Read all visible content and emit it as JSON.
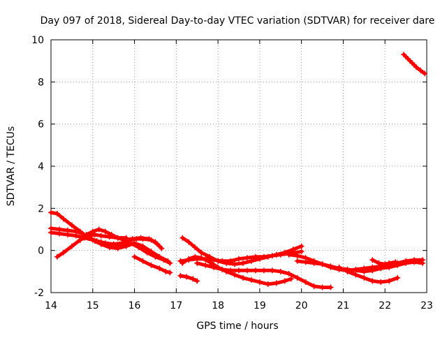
{
  "chart_data": {
    "type": "scatter",
    "title": "Day 097 of 2018, Sidereal Day-to-day VTEC variation (SDTVAR) for receiver dare",
    "xlabel": "GPS time / hours",
    "ylabel": "SDTVAR / TECUs",
    "xlim": [
      14,
      23
    ],
    "ylim": [
      -2,
      10
    ],
    "xticks": [
      14,
      15,
      16,
      17,
      18,
      19,
      20,
      21,
      22,
      23
    ],
    "yticks": [
      -2,
      0,
      2,
      4,
      6,
      8,
      10
    ],
    "xtick_labels": [
      "14",
      "15",
      "16",
      "17",
      "18",
      "19",
      "20",
      "21",
      "22",
      "23"
    ],
    "ytick_labels": [
      "-2",
      "0",
      "2",
      "4",
      "6",
      "8",
      "10"
    ],
    "grid": true,
    "marker": "+",
    "color": "#ff0000",
    "series": [
      {
        "name": "trace-1",
        "points": [
          [
            14.0,
            1.8
          ],
          [
            14.15,
            1.75
          ],
          [
            14.3,
            1.5
          ],
          [
            14.5,
            1.2
          ],
          [
            14.7,
            0.9
          ],
          [
            14.9,
            0.6
          ],
          [
            15.1,
            0.45
          ],
          [
            15.3,
            0.35
          ],
          [
            15.5,
            0.3
          ],
          [
            15.7,
            0.35
          ],
          [
            15.9,
            0.5
          ],
          [
            16.05,
            0.55
          ],
          [
            16.2,
            0.55
          ],
          [
            16.4,
            0.5
          ],
          [
            16.55,
            0.3
          ],
          [
            16.65,
            0.1
          ]
        ]
      },
      {
        "name": "trace-2",
        "points": [
          [
            14.0,
            1.05
          ],
          [
            14.2,
            1.0
          ],
          [
            14.4,
            0.95
          ],
          [
            14.6,
            0.9
          ],
          [
            14.75,
            0.8
          ],
          [
            14.9,
            0.65
          ],
          [
            15.05,
            0.45
          ],
          [
            15.2,
            0.3
          ],
          [
            15.4,
            0.15
          ],
          [
            15.6,
            0.1
          ],
          [
            15.8,
            0.2
          ],
          [
            16.0,
            0.35
          ],
          [
            16.2,
            0.2
          ],
          [
            16.4,
            -0.05
          ],
          [
            16.6,
            -0.3
          ],
          [
            16.8,
            -0.5
          ]
        ]
      },
      {
        "name": "trace-3",
        "points": [
          [
            14.0,
            0.85
          ],
          [
            14.2,
            0.8
          ],
          [
            14.4,
            0.75
          ],
          [
            14.6,
            0.7
          ],
          [
            14.8,
            0.6
          ],
          [
            15.0,
            0.5
          ],
          [
            15.2,
            0.4
          ],
          [
            15.35,
            0.3
          ],
          [
            15.5,
            0.25
          ],
          [
            15.7,
            0.3
          ],
          [
            15.9,
            0.35
          ],
          [
            16.1,
            0.15
          ],
          [
            16.3,
            -0.1
          ],
          [
            16.5,
            -0.3
          ],
          [
            16.7,
            -0.45
          ],
          [
            16.85,
            -0.6
          ]
        ]
      },
      {
        "name": "trace-4",
        "points": [
          [
            14.15,
            -0.3
          ],
          [
            14.3,
            -0.1
          ],
          [
            14.5,
            0.2
          ],
          [
            14.7,
            0.5
          ],
          [
            14.9,
            0.7
          ],
          [
            15.05,
            0.75
          ],
          [
            15.2,
            0.7
          ],
          [
            15.4,
            0.65
          ],
          [
            15.6,
            0.6
          ],
          [
            15.8,
            0.6
          ]
        ]
      },
      {
        "name": "trace-5",
        "points": [
          [
            14.7,
            0.5
          ],
          [
            14.85,
            0.75
          ],
          [
            15.0,
            0.9
          ],
          [
            15.15,
            1.0
          ],
          [
            15.3,
            0.9
          ],
          [
            15.45,
            0.75
          ],
          [
            15.6,
            0.6
          ],
          [
            15.75,
            0.5
          ],
          [
            15.95,
            0.55
          ],
          [
            16.15,
            0.6
          ],
          [
            16.35,
            0.55
          ],
          [
            16.5,
            0.4
          ],
          [
            16.6,
            0.2
          ]
        ]
      },
      {
        "name": "trace-6",
        "points": [
          [
            16.0,
            -0.3
          ],
          [
            16.2,
            -0.5
          ],
          [
            16.4,
            -0.7
          ],
          [
            16.6,
            -0.85
          ],
          [
            16.75,
            -1.0
          ],
          [
            16.85,
            -1.05
          ]
        ]
      },
      {
        "name": "trace-7",
        "points": [
          [
            17.1,
            -0.5
          ],
          [
            17.3,
            -0.45
          ],
          [
            17.5,
            -0.4
          ],
          [
            17.7,
            -0.4
          ],
          [
            17.9,
            -0.45
          ],
          [
            18.1,
            -0.5
          ],
          [
            18.3,
            -0.5
          ],
          [
            18.5,
            -0.4
          ],
          [
            18.7,
            -0.35
          ],
          [
            18.9,
            -0.3
          ],
          [
            19.1,
            -0.3
          ],
          [
            19.3,
            -0.25
          ],
          [
            19.5,
            -0.2
          ],
          [
            19.7,
            -0.15
          ],
          [
            19.85,
            -0.1
          ],
          [
            20.0,
            -0.05
          ]
        ]
      },
      {
        "name": "trace-8",
        "points": [
          [
            17.15,
            0.6
          ],
          [
            17.3,
            0.4
          ],
          [
            17.45,
            0.15
          ],
          [
            17.6,
            -0.1
          ],
          [
            17.8,
            -0.3
          ],
          [
            18.0,
            -0.5
          ],
          [
            18.2,
            -0.6
          ],
          [
            18.4,
            -0.65
          ],
          [
            18.6,
            -0.6
          ],
          [
            18.8,
            -0.5
          ],
          [
            19.0,
            -0.4
          ],
          [
            19.2,
            -0.3
          ],
          [
            19.4,
            -0.2
          ],
          [
            19.6,
            -0.1
          ],
          [
            19.8,
            0.05
          ],
          [
            20.0,
            0.2
          ]
        ]
      },
      {
        "name": "trace-9",
        "points": [
          [
            17.15,
            -0.6
          ],
          [
            17.3,
            -0.4
          ],
          [
            17.45,
            -0.3
          ],
          [
            17.6,
            -0.35
          ],
          [
            17.8,
            -0.55
          ],
          [
            18.0,
            -0.8
          ],
          [
            18.2,
            -1.0
          ],
          [
            18.4,
            -1.15
          ],
          [
            18.6,
            -1.3
          ],
          [
            18.8,
            -1.4
          ],
          [
            19.0,
            -1.5
          ],
          [
            19.2,
            -1.6
          ],
          [
            19.4,
            -1.55
          ],
          [
            19.6,
            -1.45
          ],
          [
            19.75,
            -1.35
          ]
        ]
      },
      {
        "name": "trace-10",
        "points": [
          [
            17.5,
            -0.6
          ],
          [
            17.7,
            -0.7
          ],
          [
            17.9,
            -0.8
          ],
          [
            18.1,
            -0.9
          ],
          [
            18.3,
            -0.95
          ],
          [
            18.5,
            -0.95
          ],
          [
            18.7,
            -0.95
          ],
          [
            18.9,
            -0.95
          ],
          [
            19.1,
            -0.95
          ],
          [
            19.3,
            -0.95
          ],
          [
            19.5,
            -1.0
          ],
          [
            19.7,
            -1.1
          ],
          [
            19.9,
            -1.3
          ],
          [
            20.1,
            -1.5
          ],
          [
            20.3,
            -1.7
          ],
          [
            20.5,
            -1.75
          ],
          [
            20.7,
            -1.75
          ]
        ]
      },
      {
        "name": "trace-11",
        "points": [
          [
            17.1,
            -1.2
          ],
          [
            17.25,
            -1.25
          ],
          [
            17.4,
            -1.35
          ],
          [
            17.5,
            -1.45
          ]
        ]
      },
      {
        "name": "trace-12",
        "points": [
          [
            19.7,
            -0.2
          ],
          [
            19.9,
            -0.25
          ],
          [
            20.1,
            -0.35
          ],
          [
            20.3,
            -0.5
          ],
          [
            20.5,
            -0.65
          ],
          [
            20.7,
            -0.8
          ],
          [
            20.9,
            -0.9
          ],
          [
            21.1,
            -0.95
          ],
          [
            21.3,
            -0.9
          ],
          [
            21.5,
            -0.85
          ],
          [
            21.7,
            -0.8
          ],
          [
            21.9,
            -0.75
          ],
          [
            22.1,
            -0.7
          ],
          [
            22.3,
            -0.6
          ],
          [
            22.5,
            -0.5
          ],
          [
            22.7,
            -0.45
          ],
          [
            22.9,
            -0.45
          ]
        ]
      },
      {
        "name": "trace-13",
        "points": [
          [
            19.9,
            -0.5
          ],
          [
            20.1,
            -0.55
          ],
          [
            20.3,
            -0.6
          ],
          [
            20.5,
            -0.65
          ],
          [
            20.7,
            -0.75
          ],
          [
            20.9,
            -0.85
          ],
          [
            21.1,
            -0.9
          ],
          [
            21.3,
            -0.95
          ],
          [
            21.5,
            -1.0
          ],
          [
            21.7,
            -0.95
          ],
          [
            21.9,
            -0.85
          ],
          [
            22.1,
            -0.8
          ],
          [
            22.3,
            -0.7
          ],
          [
            22.5,
            -0.6
          ],
          [
            22.7,
            -0.55
          ],
          [
            22.9,
            -0.6
          ]
        ]
      },
      {
        "name": "trace-14",
        "points": [
          [
            20.9,
            -0.8
          ],
          [
            21.1,
            -1.0
          ],
          [
            21.3,
            -1.15
          ],
          [
            21.5,
            -1.3
          ],
          [
            21.7,
            -1.45
          ],
          [
            21.9,
            -1.5
          ],
          [
            22.1,
            -1.45
          ],
          [
            22.3,
            -1.3
          ]
        ]
      },
      {
        "name": "trace-15",
        "points": [
          [
            21.7,
            -0.45
          ],
          [
            21.85,
            -0.6
          ],
          [
            22.0,
            -0.65
          ],
          [
            22.1,
            -0.6
          ],
          [
            22.25,
            -0.55
          ]
        ]
      },
      {
        "name": "trace-16",
        "points": [
          [
            22.45,
            9.3
          ],
          [
            22.55,
            9.1
          ],
          [
            22.65,
            8.9
          ],
          [
            22.75,
            8.7
          ],
          [
            22.85,
            8.55
          ],
          [
            22.95,
            8.4
          ]
        ]
      }
    ]
  }
}
